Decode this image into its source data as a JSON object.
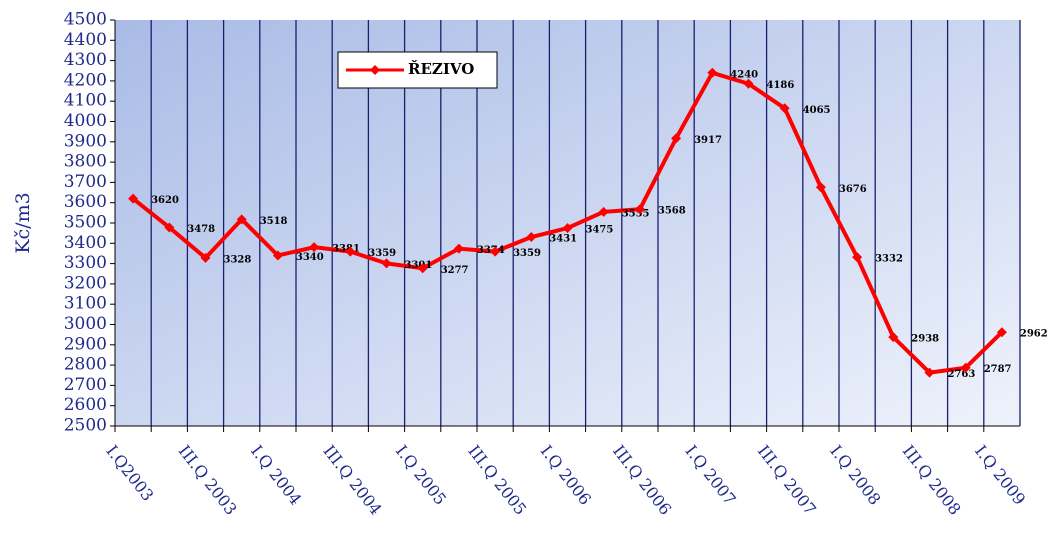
{
  "chart_data": {
    "type": "line",
    "y_label": "Kč/m3",
    "categories": [
      "I.Q2003",
      null,
      "III.Q 2003",
      null,
      "I.Q 2004",
      null,
      "III.Q 2004",
      null,
      "I.Q 2005",
      null,
      "III.Q 2005",
      null,
      "I.Q 2006",
      null,
      "III.Q 2006",
      null,
      "I.Q 2007",
      null,
      "III.Q 2007",
      null,
      "I.Q 2008",
      null,
      "III.Q 2008",
      null,
      "I.Q 2009"
    ],
    "series": [
      {
        "name": "ŘEZIVO",
        "color": "#ff0000",
        "values": [
          3620,
          3478,
          3328,
          3518,
          3340,
          3381,
          3359,
          3301,
          3277,
          3374,
          3359,
          3431,
          3475,
          3555,
          3568,
          3917,
          4240,
          4186,
          4065,
          3676,
          3332,
          2938,
          2763,
          2787,
          2962
        ]
      }
    ],
    "ylim": [
      2500,
      4500
    ],
    "yticks": [
      2500,
      2600,
      2700,
      2800,
      2900,
      3000,
      3100,
      3200,
      3300,
      3400,
      3500,
      3600,
      3700,
      3800,
      3900,
      4000,
      4100,
      4200,
      4300,
      4400,
      4500
    ]
  }
}
